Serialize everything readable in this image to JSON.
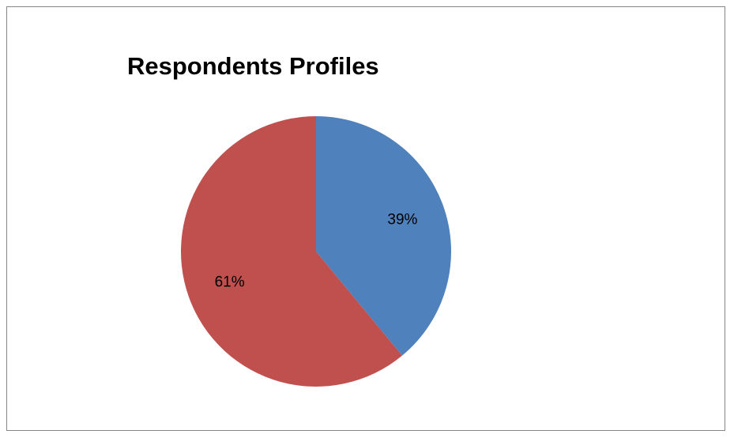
{
  "chart_data": {
    "type": "pie",
    "title": "Respondents Profiles",
    "slices": [
      {
        "value": 39,
        "label": "39%",
        "color": "#4f81bd"
      },
      {
        "value": 61,
        "label": "61%",
        "color": "#c0504d"
      }
    ],
    "start_angle_deg": 0,
    "direction": "clockwise"
  }
}
